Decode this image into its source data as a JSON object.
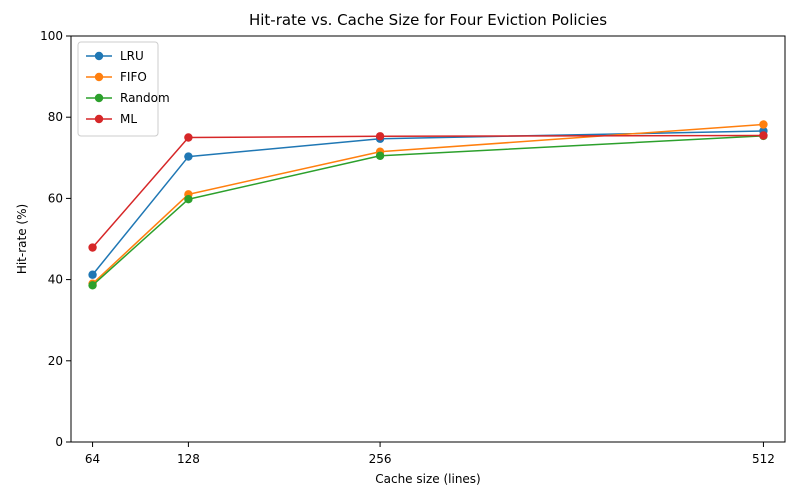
{
  "chart_data": {
    "type": "line",
    "title": "Hit-rate vs. Cache Size for Four Eviction Policies",
    "xlabel": "Cache size (lines)",
    "ylabel": "Hit-rate (%)",
    "x": [
      64,
      128,
      256,
      512
    ],
    "x_tick_labels": [
      "64",
      "128",
      "256",
      "512"
    ],
    "xlim": [
      49.6,
      526.4
    ],
    "ylim": [
      0,
      100
    ],
    "y_ticks": [
      0,
      20,
      40,
      60,
      80,
      100
    ],
    "y_tick_labels": [
      "0",
      "20",
      "40",
      "60",
      "80",
      "100"
    ],
    "grid": false,
    "legend_position": "top-left",
    "marker": "circle",
    "series": [
      {
        "name": "LRU",
        "color": "#1f77b4",
        "values": [
          41.2,
          70.3,
          74.7,
          76.6
        ]
      },
      {
        "name": "FIFO",
        "color": "#ff7f0e",
        "values": [
          39.0,
          61.0,
          71.5,
          78.2
        ]
      },
      {
        "name": "Random",
        "color": "#2ca02c",
        "values": [
          38.6,
          59.8,
          70.5,
          75.4
        ]
      },
      {
        "name": "ML",
        "color": "#d62728",
        "values": [
          47.9,
          75.0,
          75.3,
          75.5
        ]
      }
    ]
  }
}
